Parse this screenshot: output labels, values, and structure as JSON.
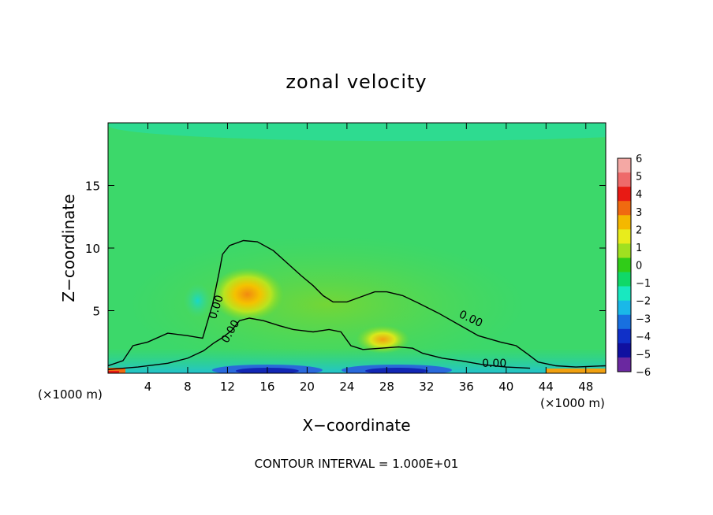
{
  "chart_data": {
    "type": "heatmap",
    "title": "zonal velocity",
    "xlabel": "X−coordinate",
    "ylabel": "Z−coordinate",
    "x_unit_left": "(×1000 m)",
    "x_unit_right": "(×1000 m)",
    "xlim": [
      0,
      50
    ],
    "ylim": [
      0,
      20
    ],
    "xticks": [
      4,
      8,
      12,
      16,
      20,
      24,
      28,
      32,
      36,
      40,
      44,
      48
    ],
    "yticks": [
      5,
      10,
      15
    ],
    "footer": "CONTOUR INTERVAL = 1.000E+01",
    "contour_label": "0.00",
    "contour_label_positions": [
      {
        "x": 11.2,
        "y": 5.2,
        "angle": -72
      },
      {
        "x": 12.6,
        "y": 3.2,
        "angle": -60
      },
      {
        "x": 36.3,
        "y": 4.1,
        "angle": 25
      },
      {
        "x": 38.8,
        "y": 0.5,
        "angle": 0
      }
    ],
    "colorbar": {
      "levels": [
        6,
        5,
        4,
        3,
        2,
        1,
        0,
        -1,
        -2,
        -3,
        -4,
        -5,
        -6
      ],
      "colors": [
        "#f4a8a4",
        "#ee6a6a",
        "#e81a14",
        "#f06a10",
        "#f4b800",
        "#e8ec1c",
        "#a0e020",
        "#30cc18",
        "#10d868",
        "#18e8c0",
        "#1ab8e8",
        "#1870e0",
        "#1030c8",
        "#1010a0",
        "#6a28a0"
      ]
    },
    "field_features": [
      {
        "name": "jet core",
        "x": 14.0,
        "z": 6.3,
        "value": 2.5
      },
      {
        "name": "secondary maximum",
        "x": 27.6,
        "z": 2.7,
        "value": 1.8
      },
      {
        "name": "weak negative pocket",
        "x": 9.0,
        "z": 5.8,
        "value": -1.5
      },
      {
        "name": "surface positive",
        "x": 1.0,
        "z": 0.3,
        "value": 5.0
      },
      {
        "name": "near-surface negative",
        "x": 16.0,
        "z": 0.3,
        "value": -4.0
      },
      {
        "name": "near-surface negative",
        "x": 29.0,
        "z": 0.2,
        "value": -4.5
      }
    ],
    "contour_zero_outer": [
      [
        0,
        0.6
      ],
      [
        1.5,
        1.0
      ],
      [
        2.5,
        2.2
      ],
      [
        4,
        2.5
      ],
      [
        6,
        3.2
      ],
      [
        8,
        3.0
      ],
      [
        9.5,
        2.8
      ],
      [
        10.5,
        5.5
      ],
      [
        11.2,
        8.2
      ],
      [
        11.5,
        9.5
      ],
      [
        12.2,
        10.2
      ],
      [
        13.6,
        10.6
      ],
      [
        15,
        10.5
      ],
      [
        16.6,
        9.8
      ],
      [
        18,
        8.8
      ],
      [
        19.4,
        7.8
      ],
      [
        20.6,
        7.0
      ],
      [
        21.6,
        6.2
      ],
      [
        22.6,
        5.7
      ],
      [
        24,
        5.7
      ],
      [
        25.4,
        6.1
      ],
      [
        26.8,
        6.5
      ],
      [
        28,
        6.5
      ],
      [
        29.6,
        6.2
      ],
      [
        31.2,
        5.6
      ],
      [
        33.2,
        4.8
      ],
      [
        35.2,
        3.9
      ],
      [
        37.2,
        3.0
      ],
      [
        39.4,
        2.5
      ],
      [
        41,
        2.2
      ],
      [
        42.2,
        1.5
      ],
      [
        43.2,
        0.9
      ],
      [
        45,
        0.6
      ],
      [
        47,
        0.5
      ],
      [
        50,
        0.6
      ]
    ],
    "contour_zero_inner": [
      [
        0,
        0.3
      ],
      [
        3,
        0.5
      ],
      [
        6,
        0.8
      ],
      [
        8,
        1.2
      ],
      [
        9.6,
        1.8
      ],
      [
        10.6,
        2.4
      ],
      [
        11.4,
        2.8
      ],
      [
        12.4,
        3.4
      ],
      [
        13.2,
        4.2
      ],
      [
        14.2,
        4.4
      ],
      [
        15.6,
        4.2
      ],
      [
        17.2,
        3.8
      ],
      [
        18.6,
        3.5
      ],
      [
        20.6,
        3.3
      ],
      [
        22.2,
        3.5
      ],
      [
        23.4,
        3.3
      ],
      [
        24.4,
        2.2
      ],
      [
        25.6,
        1.9
      ],
      [
        27.4,
        2.0
      ],
      [
        29.2,
        2.1
      ],
      [
        30.6,
        2.0
      ],
      [
        31.6,
        1.6
      ],
      [
        33.6,
        1.2
      ],
      [
        35.4,
        1.0
      ],
      [
        37.6,
        0.7
      ],
      [
        40,
        0.5
      ],
      [
        42.4,
        0.4
      ]
    ]
  }
}
